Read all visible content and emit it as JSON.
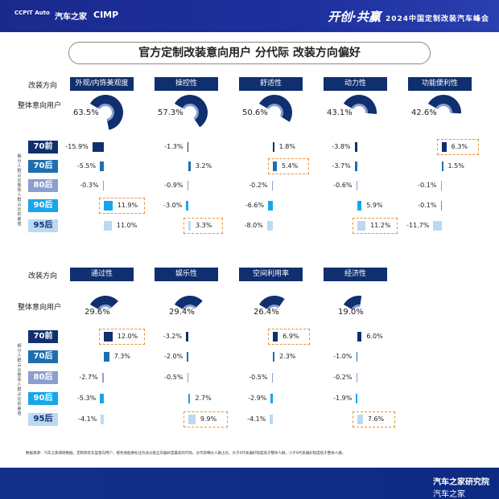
{
  "header": {
    "logo1": "CCPIT Auto",
    "logo2": "汽车之家",
    "logo3": "CIMP",
    "slogan": "开创·共赢",
    "event": "2024中国定制改装汽车峰会"
  },
  "title": "官方定制改装意向用户 分代际 改装方向偏好",
  "labels": {
    "direction": "改装方向",
    "overall": "整体意向用户",
    "vertical": "细分人群占比整体人群占比的差值"
  },
  "generations": [
    "70前",
    "70后",
    "80后",
    "90后",
    "95后"
  ],
  "colors": {
    "gen": [
      "#102f6f",
      "#1f6fb0",
      "#8a9fd0",
      "#17a6ea",
      "#bcd9f2"
    ],
    "gen_text": [
      "#fff",
      "#fff",
      "#fff",
      "#fff",
      "#102f6f"
    ],
    "fan": "#102f6f",
    "fan_inner": "#8a9fd0",
    "highlight": "#e8903a"
  },
  "chart_data": {
    "type": "bar",
    "title": "官方定制改装意向用户 分代际 改装方向偏好",
    "series_names": [
      "70前",
      "70后",
      "80后",
      "90后",
      "95后"
    ],
    "categories": [
      {
        "name": "外观/内饰美观度",
        "overall": 63.5,
        "values": [
          -15.9,
          -5.5,
          -0.3,
          11.9,
          11.0
        ],
        "highlight": 3
      },
      {
        "name": "操控性",
        "overall": 57.3,
        "values": [
          -1.3,
          3.2,
          -0.9,
          -3.0,
          3.3
        ],
        "highlight": 4
      },
      {
        "name": "舒适性",
        "overall": 50.6,
        "values": [
          1.8,
          5.4,
          -0.2,
          -6.6,
          -8.0
        ],
        "highlight": 1
      },
      {
        "name": "动力性",
        "overall": 43.1,
        "values": [
          -3.8,
          -3.7,
          -0.6,
          5.9,
          11.2
        ],
        "highlight": 4
      },
      {
        "name": "功能便利性",
        "overall": 42.6,
        "values": [
          6.3,
          1.5,
          -0.1,
          -0.1,
          -11.7
        ],
        "highlight": 0
      },
      {
        "name": "通过性",
        "overall": 29.6,
        "values": [
          12.0,
          7.3,
          -2.7,
          -5.3,
          -4.1
        ],
        "highlight": 0
      },
      {
        "name": "娱乐性",
        "overall": 29.4,
        "values": [
          -3.2,
          -2.0,
          -0.5,
          2.7,
          9.9
        ],
        "highlight": 4
      },
      {
        "name": "空间利用率",
        "overall": 26.4,
        "values": [
          6.9,
          2.3,
          -0.5,
          -2.9,
          -4.1
        ],
        "highlight": 0
      },
      {
        "name": "经济性",
        "overall": 19.0,
        "values": [
          6.0,
          -1.0,
          -0.2,
          -1.9,
          7.6
        ],
        "highlight": 4
      }
    ],
    "unit": "%"
  },
  "footnote": "数据来源：汽车之家调研数据。定制改装车型意向用户，橙色线框要标注为该分类正向偏好度最高的代际。分代际细分人群占比，大于0代表偏好程度高于整体人群，小于0代表偏好程度低于整体人群。",
  "footer": {
    "brand": "汽车之家研究院",
    "watermark": "汽车之家"
  }
}
